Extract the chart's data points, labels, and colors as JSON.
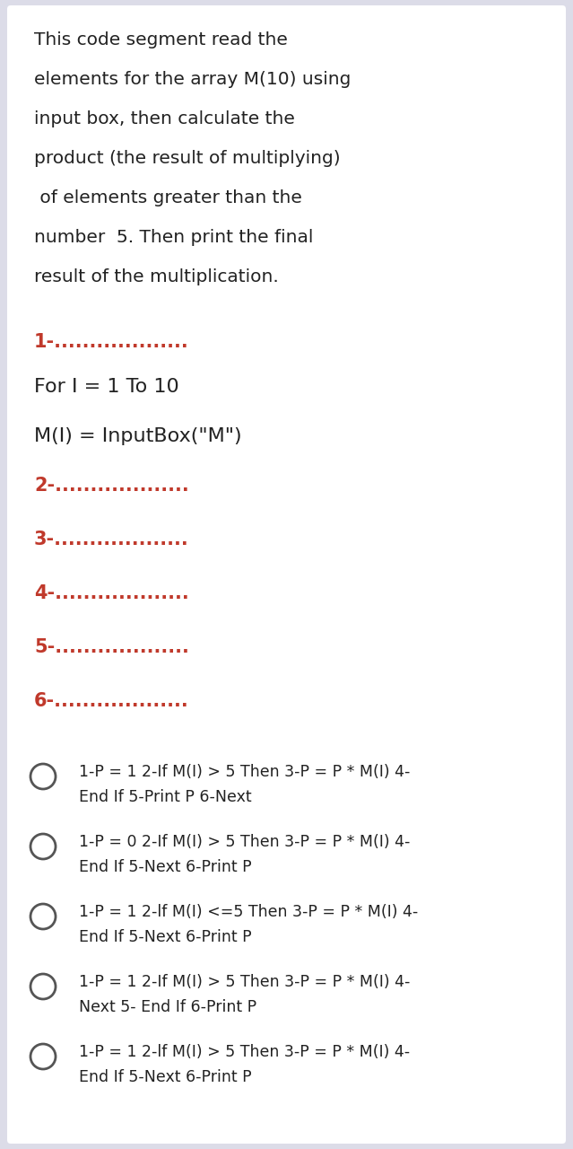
{
  "bg_color": "#dcdce8",
  "white_bg": "#ffffff",
  "description_lines": [
    "This code segment read the",
    "elements for the array M(10) using",
    "input box, then calculate the",
    "product (the result of multiplying)",
    " of elements greater than the",
    "number  5. Then print the final",
    "result of the multiplication."
  ],
  "blanks_color": "#c0392b",
  "blanks": [
    "1-...................",
    "2-...................",
    "3-...................",
    "4-...................",
    "5-...................",
    "6-..................."
  ],
  "fixed_lines": [
    "For I = 1 To 10",
    "M(I) = InputBox(\"M\")"
  ],
  "options": [
    [
      "1-P = 1 2-If M(I) > 5 Then 3-P = P * M(I) 4-",
      "End If 5-Print P 6-Next"
    ],
    [
      "1-P = 0 2-If M(I) > 5 Then 3-P = P * M(I) 4-",
      "End If 5-Next 6-Print P"
    ],
    [
      "1-P = 1 2-lf M(I) <=5 Then 3-P = P * M(I) 4-",
      "End If 5-Next 6-Print P"
    ],
    [
      "1-P = 1 2-If M(I) > 5 Then 3-P = P * M(I) 4-",
      "Next 5- End If 6-Print P"
    ],
    [
      "1-P = 1 2-lf M(I) > 5 Then 3-P = P * M(I) 4-",
      "End If 5-Next 6-Print P"
    ]
  ],
  "text_color": "#222222",
  "circle_color": "#555555"
}
